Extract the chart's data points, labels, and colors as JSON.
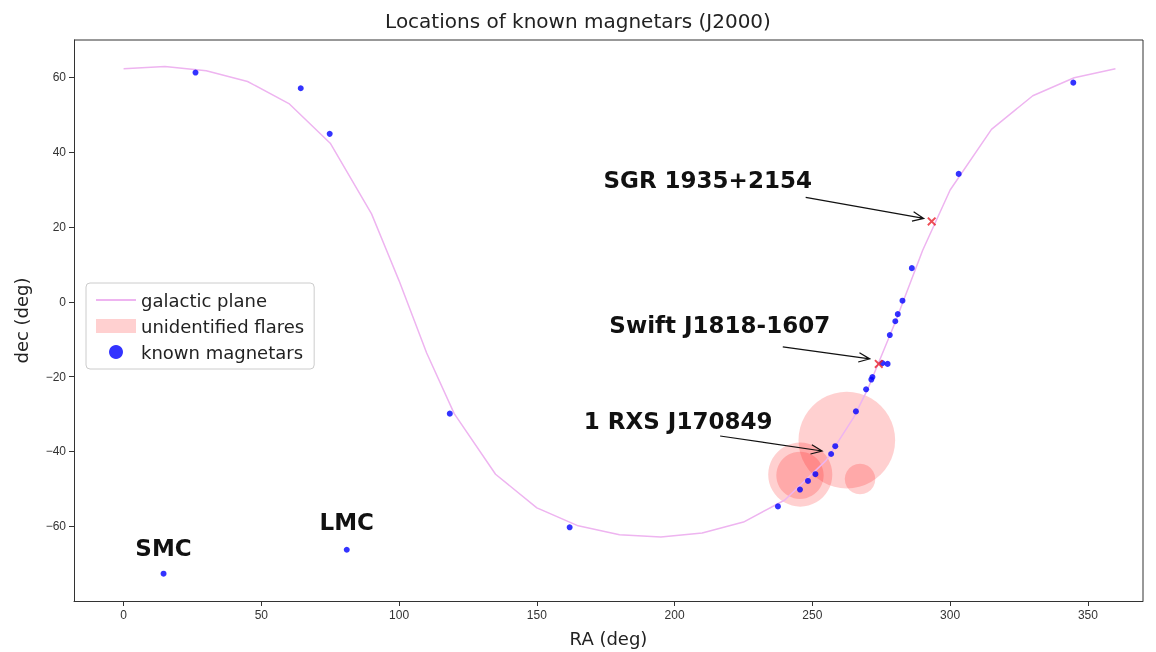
{
  "chart_data": {
    "type": "scatter",
    "title": "Locations of known magnetars (J2000)",
    "xlabel": "RA (deg)",
    "ylabel": "dec (deg)",
    "xlim": [
      -18,
      370
    ],
    "xticks": [
      0,
      50,
      100,
      150,
      200,
      250,
      300,
      350
    ],
    "ylim": [
      -80,
      70
    ],
    "yticks": [
      -60,
      -40,
      -20,
      0,
      20,
      40,
      60
    ],
    "grid": false,
    "legend": "left",
    "series": [
      {
        "name": "galactic plane",
        "type": "line",
        "color": "#eeb4f0",
        "marker": "none",
        "x": [
          0,
          15,
          30,
          45,
          60,
          75,
          90,
          100,
          110,
          120,
          135,
          150,
          165,
          180,
          195,
          210,
          225,
          240,
          255,
          265,
          270,
          280,
          290,
          300,
          315,
          330,
          345,
          360
        ],
        "values": [
          62.3,
          62.9,
          61.8,
          58.9,
          53.0,
          42.4,
          23.5,
          5.6,
          -13.7,
          -29.9,
          -46.1,
          -55.1,
          -59.9,
          -62.3,
          -62.9,
          -61.8,
          -58.9,
          -53.0,
          -42.4,
          -30.9,
          -23.5,
          -5.6,
          13.7,
          29.9,
          46.1,
          55.1,
          59.9,
          62.3
        ]
      },
      {
        "name": "unidentified flares",
        "type": "bubble",
        "color": "#ffc4c4",
        "x": [
          262.5,
          245.6,
          245.5,
          267.3
        ],
        "values": [
          -37.0,
          -46.2,
          -46.4,
          -47.4
        ],
        "sizes": [
          1,
          0.44,
          0.24,
          0.1
        ]
      },
      {
        "name": "known magnetars",
        "color": "#0000ff",
        "marker": "circle",
        "x": [
          26.1,
          64.3,
          74.8,
          118.4,
          161.9,
          14.5,
          81.0,
          237.5,
          303.1,
          286.1,
          282.7,
          281.0,
          280.1,
          278.1,
          277.3,
          275.4,
          271.8,
          271.4,
          269.5,
          265.8,
          258.3,
          256.8,
          251.1,
          248.4,
          245.5,
          344.7
        ],
        "values": [
          61.3,
          57.1,
          44.9,
          -29.9,
          -60.3,
          -72.7,
          -66.3,
          -54.7,
          34.2,
          9.0,
          0.3,
          -3.3,
          -5.2,
          -8.9,
          -16.6,
          -16.4,
          -20.1,
          -20.8,
          -23.4,
          -29.3,
          -38.6,
          -40.7,
          -46.1,
          -47.9,
          -50.2,
          58.6
        ]
      },
      {
        "color": "#e8202a",
        "marker": "cross",
        "x": [
          293.3,
          274.1
        ],
        "values": [
          21.5,
          -16.6
        ]
      }
    ],
    "annotations": [
      {
        "text": "SGR 1935+2154",
        "x": 293.3,
        "y": 21.5
      },
      {
        "text": "Swift J1818-1607",
        "x": 274.1,
        "y": -16.6
      },
      {
        "text": "1 RXS J170849",
        "x": 256.8,
        "y": -40.7
      },
      {
        "text": "SMC",
        "x": 14.5,
        "y": -72.7
      },
      {
        "text": "LMC",
        "x": 81.0,
        "y": -66.3
      }
    ]
  }
}
